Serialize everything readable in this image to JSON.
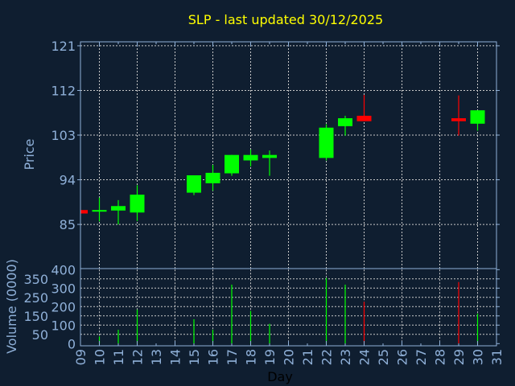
{
  "chart_data": {
    "type": "candlestick",
    "title": "SLP - last updated 30/12/2025",
    "xlabel": "Day",
    "ylabel": "Price",
    "volume_label": "Volume (0000)",
    "x_ticks": [
      "09",
      "10",
      "11",
      "12",
      "13",
      "14",
      "15",
      "16",
      "17",
      "18",
      "19",
      "20",
      "21",
      "22",
      "23",
      "24",
      "25",
      "26",
      "27",
      "28",
      "29",
      "30",
      "31"
    ],
    "x_range": [
      9,
      31
    ],
    "price_ticks": [
      121,
      112,
      103,
      94,
      85
    ],
    "price_range": [
      76.1,
      121.8
    ],
    "volume_ticks": [
      0,
      50,
      100,
      150,
      200,
      250,
      300,
      350,
      400
    ],
    "volume_range": [
      0,
      400
    ],
    "grid": true,
    "colors": {
      "up": "#00ff00",
      "down": "#ff0000",
      "title": "#ffff00",
      "axis": "#8fb0d8",
      "background": "#0f1e30"
    },
    "candles": [
      {
        "day": 9,
        "open": 87.9,
        "high": 87.9,
        "low": 87.2,
        "close": 87.2,
        "volume": 0
      },
      {
        "day": 10,
        "open": 87.7,
        "high": 90.4,
        "low": 85.6,
        "close": 87.9,
        "volume": 39
      },
      {
        "day": 11,
        "open": 87.8,
        "high": 89.9,
        "low": 85.0,
        "close": 88.7,
        "volume": 75
      },
      {
        "day": 12,
        "open": 87.4,
        "high": 92.9,
        "low": 85.7,
        "close": 91.0,
        "volume": 184
      },
      {
        "day": 15,
        "open": 91.4,
        "high": 94.9,
        "low": 90.9,
        "close": 94.9,
        "volume": 132
      },
      {
        "day": 16,
        "open": 93.3,
        "high": 97.0,
        "low": 91.8,
        "close": 95.4,
        "volume": 75
      },
      {
        "day": 17,
        "open": 95.3,
        "high": 99.0,
        "low": 94.8,
        "close": 99.0,
        "volume": 319
      },
      {
        "day": 18,
        "open": 97.9,
        "high": 100.1,
        "low": 96.7,
        "close": 99.0,
        "volume": 177
      },
      {
        "day": 19,
        "open": 98.4,
        "high": 99.9,
        "low": 94.8,
        "close": 99.0,
        "volume": 107
      },
      {
        "day": 22,
        "open": 98.4,
        "high": 105.2,
        "low": 97.9,
        "close": 104.5,
        "volume": 355
      },
      {
        "day": 23,
        "open": 104.8,
        "high": 106.9,
        "low": 102.9,
        "close": 106.4,
        "volume": 319
      },
      {
        "day": 24,
        "open": 106.9,
        "high": 111.1,
        "low": 105.8,
        "close": 105.8,
        "volume": 226
      },
      {
        "day": 29,
        "open": 106.4,
        "high": 111.0,
        "low": 102.9,
        "close": 105.8,
        "volume": 333
      },
      {
        "day": 30,
        "open": 105.3,
        "high": 108.0,
        "low": 103.9,
        "close": 108.0,
        "volume": 162
      }
    ]
  }
}
